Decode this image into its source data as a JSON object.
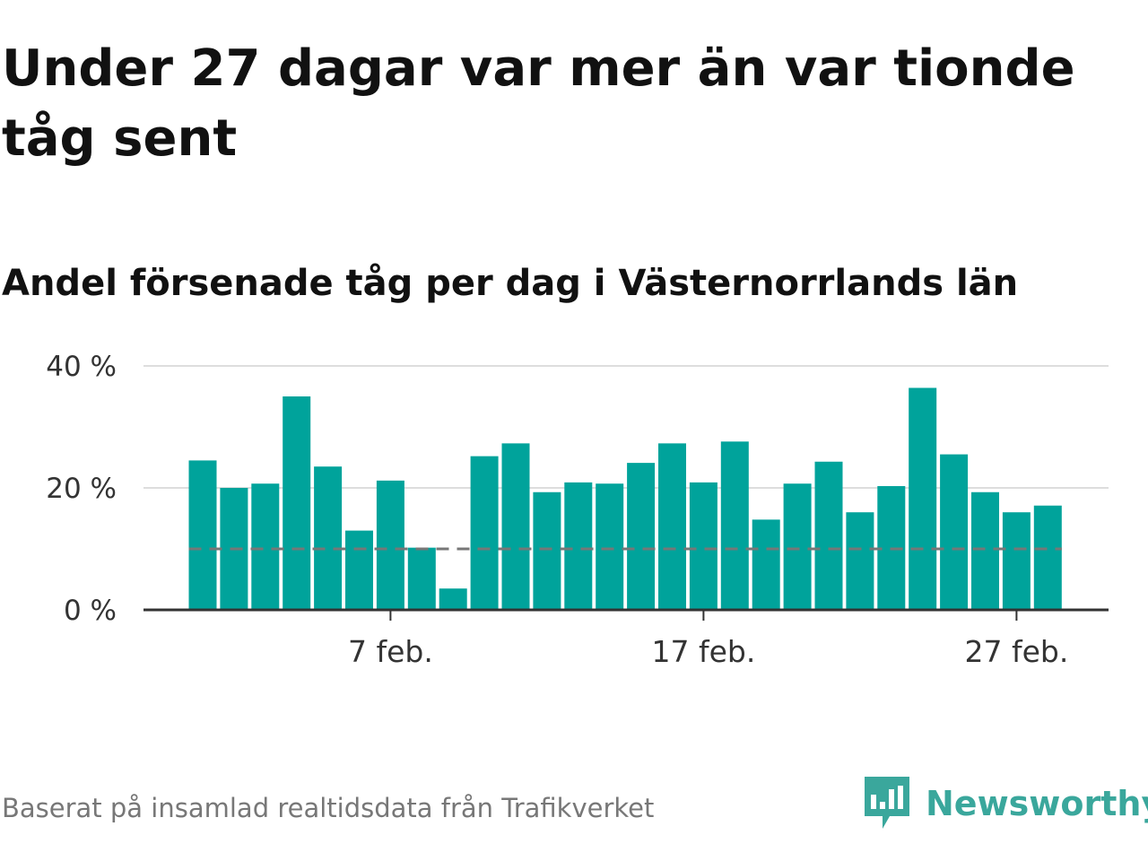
{
  "title": "Under 27 dagar var mer än var tionde tåg sent",
  "subtitle": "Andel försenade tåg per dag i Västernorrlands län",
  "source": "Baserat på insamlad realtidsdata från Trafikverket",
  "brand": {
    "name": "Newsworthy",
    "icon": "newsworthy-logo-icon",
    "color": "#3aa79c"
  },
  "colors": {
    "bar": "#00a39b",
    "reference_line": "#777777",
    "grid": "#dddddd",
    "axis": "#333333"
  },
  "chart_data": {
    "type": "bar",
    "title": "Andel försenade tåg per dag i Västernorrlands län",
    "xlabel": "",
    "ylabel": "",
    "x": [
      "1 feb.",
      "2 feb.",
      "3 feb.",
      "4 feb.",
      "5 feb.",
      "6 feb.",
      "7 feb.",
      "8 feb.",
      "9 feb.",
      "10 feb.",
      "11 feb.",
      "12 feb.",
      "13 feb.",
      "14 feb.",
      "15 feb.",
      "16 feb.",
      "17 feb.",
      "18 feb.",
      "19 feb.",
      "20 feb.",
      "21 feb.",
      "22 feb.",
      "23 feb.",
      "24 feb.",
      "25 feb.",
      "26 feb.",
      "27 feb.",
      "28 feb."
    ],
    "values": [
      24.5,
      20,
      20.7,
      35,
      23.5,
      13,
      21.2,
      10.2,
      3.5,
      25.2,
      27.3,
      19.3,
      20.9,
      20.7,
      24.1,
      27.3,
      20.9,
      27.6,
      14.8,
      20.7,
      24.3,
      16,
      20.3,
      36.4,
      25.5,
      19.3,
      16,
      17.1
    ],
    "reference_line": 10,
    "ylim": [
      0,
      40
    ],
    "y_ticks": [
      0,
      20,
      40
    ],
    "y_tick_labels": [
      "0 %",
      "20 %",
      "40 %"
    ],
    "x_ticks": [
      "7 feb.",
      "17 feb.",
      "27 feb."
    ],
    "grid": true,
    "legend": "none"
  }
}
